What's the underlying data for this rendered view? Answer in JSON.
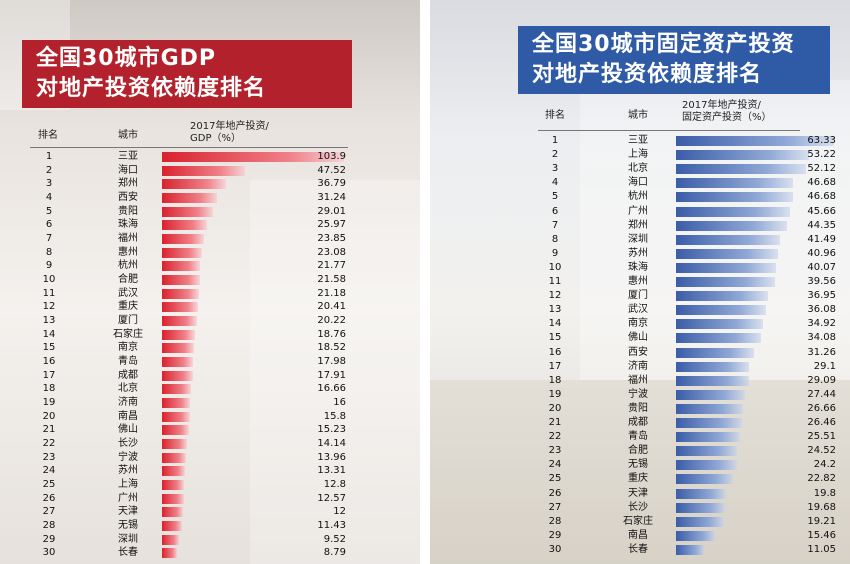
{
  "left_panel": {
    "title_line1": "全国30城市GDP",
    "title_line2": "对地产投资依赖度排名",
    "col_rank": "排名",
    "col_city": "城市",
    "col_value_line1": "2017年地产投资/",
    "col_value_line2": "GDP（%）",
    "accent_color": "#b3222c"
  },
  "right_panel": {
    "title_line1": "全国30城市固定资产投资",
    "title_line2": "对地产投资依赖度排名",
    "col_rank": "排名",
    "col_city": "城市",
    "col_value_line1": "2017年地产投资/",
    "col_value_line2": "固定资产投资（%）",
    "accent_color": "#2f5aa5"
  },
  "chart_data": [
    {
      "type": "bar",
      "title": "全国30城市GDP对地产投资依赖度排名",
      "ylabel": "2017年地产投资/GDP（%）",
      "categories": [
        "三亚",
        "海口",
        "郑州",
        "西安",
        "贵阳",
        "珠海",
        "福州",
        "惠州",
        "杭州",
        "合肥",
        "武汉",
        "重庆",
        "厦门",
        "石家庄",
        "南京",
        "青岛",
        "成都",
        "北京",
        "济南",
        "南昌",
        "佛山",
        "长沙",
        "宁波",
        "苏州",
        "上海",
        "广州",
        "天津",
        "无锡",
        "深圳",
        "长春"
      ],
      "ranks": [
        "1",
        "2",
        "3",
        "4",
        "5",
        "6",
        "7",
        "8",
        "9",
        "10",
        "11",
        "12",
        "13",
        "14",
        "15",
        "16",
        "17",
        "18",
        "19",
        "20",
        "21",
        "22",
        "23",
        "24",
        "25",
        "26",
        "27",
        "28",
        "29",
        "30"
      ],
      "labels": [
        "103.9",
        "47.52",
        "36.79",
        "31.24",
        "29.01",
        "25.97",
        "23.85",
        "23.08",
        "21.77",
        "21.58",
        "21.18",
        "20.41",
        "20.22",
        "18.76",
        "18.52",
        "17.98",
        "17.91",
        "16.66",
        "16",
        "15.8",
        "15.23",
        "14.14",
        "13.96",
        "13.31",
        "12.8",
        "12.57",
        "12",
        "11.43",
        "9.52",
        "8.79"
      ],
      "values": [
        103.9,
        47.52,
        36.79,
        31.24,
        29.01,
        25.97,
        23.85,
        23.08,
        21.77,
        21.58,
        21.18,
        20.41,
        20.22,
        18.76,
        18.52,
        17.98,
        17.91,
        16.66,
        16,
        15.8,
        15.23,
        14.14,
        13.96,
        13.31,
        12.8,
        12.57,
        12,
        11.43,
        9.52,
        8.79
      ],
      "xlim": [
        0,
        104
      ],
      "orientation": "horizontal"
    },
    {
      "type": "bar",
      "title": "全国30城市固定资产投资对地产投资依赖度排名",
      "ylabel": "2017年地产投资/固定资产投资（%）",
      "categories": [
        "三亚",
        "上海",
        "北京",
        "海口",
        "杭州",
        "广州",
        "郑州",
        "深圳",
        "苏州",
        "珠海",
        "惠州",
        "厦门",
        "武汉",
        "南京",
        "佛山",
        "西安",
        "济南",
        "福州",
        "宁波",
        "贵阳",
        "成都",
        "青岛",
        "合肥",
        "无锡",
        "重庆",
        "天津",
        "长沙",
        "石家庄",
        "南昌",
        "长春"
      ],
      "ranks": [
        "1",
        "2",
        "3",
        "4",
        "5",
        "6",
        "7",
        "8",
        "9",
        "10",
        "11",
        "12",
        "13",
        "14",
        "15",
        "16",
        "17",
        "18",
        "19",
        "20",
        "21",
        "22",
        "23",
        "24",
        "25",
        "26",
        "27",
        "28",
        "29",
        "30"
      ],
      "labels": [
        "63.33",
        "53.22",
        "52.12",
        "46.68",
        "46.68",
        "45.66",
        "44.35",
        "41.49",
        "40.96",
        "40.07",
        "39.56",
        "36.95",
        "36.08",
        "34.92",
        "34.08",
        "31.26",
        "29.1",
        "29.09",
        "27.44",
        "26.66",
        "26.46",
        "25.51",
        "24.52",
        "24.2",
        "22.82",
        "19.8",
        "19.68",
        "19.21",
        "15.46",
        "11.05"
      ],
      "values": [
        63.33,
        53.22,
        52.12,
        46.68,
        46.68,
        45.66,
        44.35,
        41.49,
        40.96,
        40.07,
        39.56,
        36.95,
        36.08,
        34.92,
        34.08,
        31.26,
        29.1,
        29.09,
        27.44,
        26.66,
        26.46,
        25.51,
        24.52,
        24.2,
        22.82,
        19.8,
        19.68,
        19.21,
        15.46,
        11.05
      ],
      "xlim": [
        0,
        64
      ],
      "orientation": "horizontal"
    }
  ]
}
